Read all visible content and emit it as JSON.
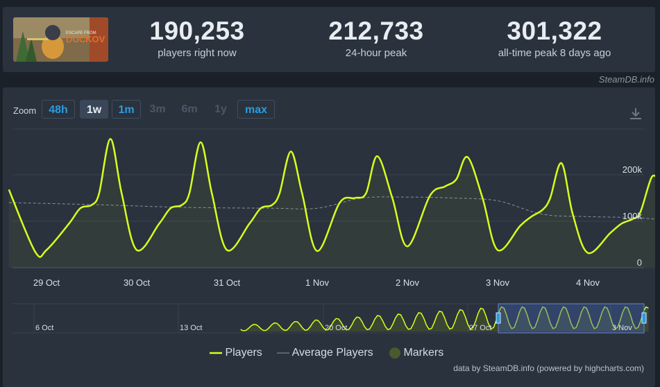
{
  "stats": [
    {
      "value": "190,253",
      "label": "players right now"
    },
    {
      "value": "212,733",
      "label": "24-hour peak"
    },
    {
      "value": "301,322",
      "label": "all-time peak 8 days ago"
    }
  ],
  "thumbnail": {
    "text_small": "ESCAPE FROM",
    "text_big": "DUCKOV"
  },
  "credit_top": "SteamDB.info",
  "zoom": {
    "label": "Zoom",
    "buttons": [
      {
        "label": "48h",
        "state": "active"
      },
      {
        "label": "1w",
        "state": "selected"
      },
      {
        "label": "1m",
        "state": "active"
      },
      {
        "label": "3m",
        "state": "disabled"
      },
      {
        "label": "6m",
        "state": "disabled"
      },
      {
        "label": "1y",
        "state": "disabled"
      },
      {
        "label": "max",
        "state": "active"
      }
    ]
  },
  "legend": {
    "players": "Players",
    "average": "Average Players",
    "markers": "Markers"
  },
  "credit_bottom": "data by SteamDB.info (powered by highcharts.com)",
  "colors": {
    "players": "#d8ff1e",
    "average": "#8a939c",
    "markers": "#4a5a2c",
    "accent": "#2b9ce0",
    "background": "#2a323d"
  },
  "chart_data": {
    "type": "line",
    "xaxis_labels": [
      "29 Oct",
      "30 Oct",
      "31 Oct",
      "1 Nov",
      "2 Nov",
      "3 Nov",
      "4 Nov"
    ],
    "yaxis_ticks": [
      "0",
      "100k",
      "200k"
    ],
    "ylim": [
      0,
      200000
    ],
    "grid": true,
    "series": [
      {
        "name": "Players",
        "x": [
          "28 Oct 14:00",
          "28 Oct 21:00",
          "29 Oct 00:00",
          "29 Oct 06:00",
          "29 Oct 09:00",
          "29 Oct 12:00",
          "29 Oct 14:00",
          "29 Oct 17:00",
          "29 Oct 20:00",
          "30 Oct 00:00",
          "30 Oct 06:00",
          "30 Oct 09:00",
          "30 Oct 12:00",
          "30 Oct 14:00",
          "30 Oct 17:00",
          "30 Oct 20:00",
          "31 Oct 00:00",
          "31 Oct 06:00",
          "31 Oct 09:00",
          "31 Oct 12:00",
          "31 Oct 14:00",
          "31 Oct 17:00",
          "31 Oct 20:00",
          "1 Nov 00:00",
          "1 Nov 06:00",
          "1 Nov 10:00",
          "1 Nov 13:00",
          "1 Nov 16:00",
          "1 Nov 20:00",
          "2 Nov 00:00",
          "2 Nov 06:00",
          "2 Nov 10:00",
          "2 Nov 13:00",
          "2 Nov 16:00",
          "2 Nov 20:00",
          "3 Nov 00:00",
          "3 Nov 06:00",
          "3 Nov 09:00",
          "3 Nov 12:00",
          "3 Nov 14:00",
          "3 Nov 17:00",
          "3 Nov 20:00",
          "4 Nov 00:00",
          "4 Nov 06:00",
          "4 Nov 09:00",
          "4 Nov 12:00",
          "4 Nov 14:00",
          "4 Nov 17:00",
          "4 Nov 19:00"
        ],
        "values": [
          168000,
          34000,
          38000,
          95000,
          128000,
          135000,
          160000,
          277000,
          160000,
          38000,
          95000,
          128000,
          135000,
          160000,
          270000,
          160000,
          38000,
          95000,
          128000,
          135000,
          160000,
          250000,
          160000,
          36000,
          140000,
          150000,
          160000,
          240000,
          150000,
          46000,
          155000,
          175000,
          190000,
          238000,
          150000,
          38000,
          90000,
          110000,
          125000,
          150000,
          225000,
          115000,
          32000,
          75000,
          95000,
          105000,
          120000,
          195000,
          186000
        ]
      },
      {
        "name": "Average Players",
        "x": [
          "28 Oct 14:00",
          "29 Oct 12:00",
          "30 Oct 12:00",
          "31 Oct 12:00",
          "1 Nov 00:00",
          "1 Nov 12:00",
          "2 Nov 00:00",
          "2 Nov 12:00",
          "3 Nov 00:00",
          "3 Nov 12:00",
          "4 Nov 00:00",
          "4 Nov 12:00",
          "4 Nov 19:00"
        ],
        "values": [
          140000,
          136000,
          130000,
          128000,
          128000,
          150000,
          152000,
          150000,
          144000,
          115000,
          110000,
          108000,
          104000
        ]
      }
    ],
    "navigator": {
      "labels": [
        "6 Oct",
        "13 Oct",
        "20 Oct",
        "27 Oct",
        "3 Nov"
      ]
    }
  }
}
